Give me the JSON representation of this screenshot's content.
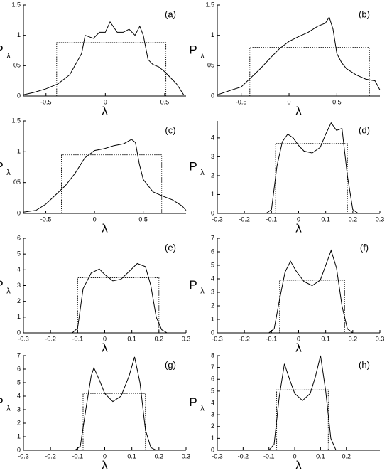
{
  "chart_data": [
    {
      "type": "line",
      "annotation": "(a)",
      "ylabel": "P",
      "ylabel_sub": "λ",
      "xlabel": "λ",
      "xlim": [
        -0.69,
        0.68
      ],
      "xticks": [
        -0.5,
        0,
        0.5
      ],
      "ylim": [
        0,
        1.5
      ],
      "yticks": [
        0,
        {
          "value": 0.5,
          "label": "05"
        },
        1,
        1.5
      ],
      "series": [
        {
          "color": "#000",
          "style": "solid",
          "x": [
            -0.69,
            -0.6,
            -0.5,
            -0.4,
            -0.3,
            -0.2,
            -0.17,
            -0.1,
            -0.05,
            0,
            0.04,
            0.1,
            0.15,
            0.2,
            0.25,
            0.29,
            0.32,
            0.36,
            0.4,
            0.45,
            0.5,
            0.55,
            0.6,
            0.66
          ],
          "values": [
            0.02,
            0.06,
            0.12,
            0.2,
            0.35,
            0.7,
            1.0,
            0.95,
            1.05,
            1.05,
            1.22,
            1.05,
            1.05,
            1.1,
            1.0,
            1.15,
            1.0,
            0.6,
            0.52,
            0.48,
            0.4,
            0.3,
            0.2,
            0.02
          ]
        },
        {
          "color": "#000",
          "style": "dotted",
          "x": [
            -0.41,
            -0.41,
            0.51,
            0.51
          ],
          "values": [
            0,
            0.88,
            0.88,
            0
          ]
        }
      ]
    },
    {
      "type": "line",
      "annotation": "(b)",
      "ylabel": "P",
      "ylabel_sub": "λ",
      "xlabel": "λ",
      "xlim": [
        -0.75,
        0.95
      ],
      "xticks": [
        -0.5,
        0,
        0.5
      ],
      "ylim": [
        0,
        1.5
      ],
      "yticks": [
        0,
        {
          "value": 0.5,
          "label": "05"
        },
        1,
        1.5
      ],
      "series": [
        {
          "color": "#000",
          "style": "solid",
          "x": [
            -0.75,
            -0.6,
            -0.5,
            -0.4,
            -0.3,
            -0.2,
            -0.1,
            0,
            0.1,
            0.2,
            0.3,
            0.38,
            0.42,
            0.46,
            0.5,
            0.55,
            0.6,
            0.7,
            0.8,
            0.9,
            0.95
          ],
          "values": [
            0.02,
            0.1,
            0.15,
            0.3,
            0.45,
            0.62,
            0.78,
            0.9,
            0.98,
            1.05,
            1.15,
            1.2,
            1.3,
            1.1,
            0.7,
            0.55,
            0.45,
            0.35,
            0.28,
            0.25,
            0.1
          ]
        },
        {
          "color": "#000",
          "style": "dotted",
          "x": [
            -0.41,
            -0.41,
            0.84,
            0.84
          ],
          "values": [
            0,
            0.8,
            0.8,
            0
          ]
        }
      ]
    },
    {
      "type": "line",
      "annotation": "(c)",
      "ylabel": "P",
      "ylabel_sub": "λ",
      "xlabel": "λ",
      "xlim": [
        -0.73,
        0.94
      ],
      "xticks": [
        -0.5,
        0,
        0.5
      ],
      "ylim": [
        0,
        1.5
      ],
      "yticks": [
        0,
        {
          "value": 0.5,
          "label": "05"
        },
        1,
        1.5
      ],
      "series": [
        {
          "color": "#000",
          "style": "solid",
          "x": [
            -0.73,
            -0.6,
            -0.5,
            -0.4,
            -0.3,
            -0.2,
            -0.1,
            0,
            0.1,
            0.2,
            0.3,
            0.38,
            0.42,
            0.46,
            0.5,
            0.6,
            0.7,
            0.8,
            0.9,
            0.94
          ],
          "values": [
            0.02,
            0.05,
            0.15,
            0.3,
            0.45,
            0.65,
            0.9,
            1.02,
            1.05,
            1.1,
            1.13,
            1.2,
            1.15,
            0.8,
            0.55,
            0.35,
            0.28,
            0.22,
            0.12,
            0.05
          ]
        },
        {
          "color": "#000",
          "style": "dotted",
          "x": [
            -0.34,
            -0.34,
            0.69,
            0.69
          ],
          "values": [
            0,
            0.95,
            0.95,
            0
          ]
        }
      ]
    },
    {
      "type": "line",
      "annotation": "(d)",
      "ylabel": "P",
      "ylabel_sub": "λ",
      "xlabel": "λ",
      "xlim": [
        -0.3,
        0.3
      ],
      "xticks": [
        -0.3,
        -0.2,
        -0.1,
        0,
        0.1,
        0.2,
        0.3
      ],
      "ylim": [
        0,
        4.9
      ],
      "yticks": [
        0,
        1,
        2,
        3,
        4
      ],
      "series": [
        {
          "color": "#000",
          "style": "solid",
          "x": [
            -0.3,
            -0.12,
            -0.1,
            -0.08,
            -0.06,
            -0.04,
            -0.02,
            0,
            0.02,
            0.05,
            0.08,
            0.1,
            0.12,
            0.14,
            0.16,
            0.18,
            0.2,
            0.22,
            0.3
          ],
          "values": [
            0,
            0,
            0.2,
            2.5,
            3.8,
            4.2,
            4.0,
            3.6,
            3.3,
            3.2,
            3.5,
            4.2,
            4.8,
            4.4,
            4.5,
            2.0,
            0.2,
            0,
            0
          ]
        },
        {
          "color": "#000",
          "style": "dotted",
          "x": [
            -0.085,
            -0.085,
            0.18,
            0.18
          ],
          "values": [
            0,
            3.7,
            3.7,
            0
          ]
        }
      ]
    },
    {
      "type": "line",
      "annotation": "(e)",
      "ylabel": "P",
      "ylabel_sub": "λ",
      "xlabel": "λ",
      "xlim": [
        -0.3,
        0.3
      ],
      "xticks": [
        -0.3,
        -0.2,
        -0.1,
        0,
        0.1,
        0.2,
        0.3
      ],
      "ylim": [
        0,
        6
      ],
      "yticks": [
        0,
        1,
        2,
        3,
        4,
        5,
        6
      ],
      "series": [
        {
          "color": "#000",
          "style": "solid",
          "x": [
            -0.3,
            -0.12,
            -0.1,
            -0.08,
            -0.05,
            -0.02,
            0,
            0.03,
            0.06,
            0.09,
            0.12,
            0.15,
            0.17,
            0.19,
            0.21,
            0.23,
            0.3
          ],
          "values": [
            0,
            0,
            0.3,
            2.8,
            3.8,
            4.05,
            3.7,
            3.3,
            3.4,
            3.9,
            4.4,
            4.2,
            3.0,
            1.0,
            0.2,
            0,
            0
          ]
        },
        {
          "color": "#000",
          "style": "dotted",
          "x": [
            -0.1,
            -0.1,
            0.2,
            0.2
          ],
          "values": [
            0,
            3.5,
            3.5,
            0
          ]
        }
      ]
    },
    {
      "type": "line",
      "annotation": "(f)",
      "ylabel": "P",
      "ylabel_sub": "λ",
      "xlabel": "λ",
      "xlim": [
        -0.3,
        0.3
      ],
      "xticks": [
        -0.3,
        -0.2,
        -0.1,
        0,
        0.1,
        0.2,
        0.3
      ],
      "ylim": [
        0,
        7
      ],
      "yticks": [
        0,
        1,
        2,
        3,
        4,
        5,
        6,
        7
      ],
      "series": [
        {
          "color": "#000",
          "style": "solid",
          "x": [
            -0.3,
            -0.11,
            -0.09,
            -0.07,
            -0.05,
            -0.03,
            -0.01,
            0.02,
            0.05,
            0.08,
            0.1,
            0.12,
            0.14,
            0.16,
            0.18,
            0.2,
            0.3
          ],
          "values": [
            0,
            0,
            0.3,
            2.5,
            4.5,
            5.3,
            4.6,
            3.8,
            3.5,
            3.9,
            5.0,
            6.1,
            4.8,
            2.0,
            0.3,
            0,
            0
          ]
        },
        {
          "color": "#000",
          "style": "dotted",
          "x": [
            -0.07,
            -0.07,
            0.17,
            0.17
          ],
          "values": [
            0,
            3.9,
            3.9,
            0
          ]
        }
      ]
    },
    {
      "type": "line",
      "annotation": "(g)",
      "ylabel": "P",
      "ylabel_sub": "λ",
      "xlabel": "λ",
      "xlim": [
        -0.3,
        0.3
      ],
      "xticks": [
        -0.3,
        -0.2,
        -0.1,
        0,
        0.1,
        0.2,
        0.3
      ],
      "ylim": [
        0,
        7
      ],
      "yticks": [
        0,
        1,
        2,
        3,
        4,
        5,
        6,
        7
      ],
      "series": [
        {
          "color": "#000",
          "style": "solid",
          "x": [
            -0.3,
            -0.11,
            -0.09,
            -0.07,
            -0.05,
            -0.04,
            -0.02,
            0,
            0.03,
            0.06,
            0.09,
            0.11,
            0.13,
            0.15,
            0.17,
            0.19,
            0.3
          ],
          "values": [
            0,
            0,
            0.3,
            3.0,
            5.5,
            6.1,
            5.2,
            4.2,
            3.6,
            4.0,
            5.5,
            6.9,
            5.0,
            1.5,
            0.2,
            0,
            0
          ]
        },
        {
          "color": "#000",
          "style": "dotted",
          "x": [
            -0.08,
            -0.08,
            0.15,
            0.15
          ],
          "values": [
            0,
            4.2,
            4.2,
            0
          ]
        }
      ]
    },
    {
      "type": "line",
      "annotation": "(h)",
      "ylabel": "P",
      "ylabel_sub": "λ",
      "xlabel": "λ",
      "xlim": [
        -0.3,
        0.33
      ],
      "xticks": [
        -0.3,
        -0.2,
        -0.1,
        0,
        0.1,
        0.2
      ],
      "ylim": [
        0,
        8
      ],
      "yticks": [
        0,
        1,
        2,
        3,
        4,
        5,
        6,
        7,
        8
      ],
      "series": [
        {
          "color": "#000",
          "style": "solid",
          "x": [
            -0.3,
            -0.1,
            -0.08,
            -0.06,
            -0.04,
            -0.02,
            0,
            0.03,
            0.06,
            0.08,
            0.1,
            0.12,
            0.14,
            0.16,
            0.2,
            0.25
          ],
          "values": [
            0,
            0,
            0.5,
            4.5,
            7.3,
            6.0,
            4.8,
            4.2,
            4.8,
            6.2,
            8.0,
            5.0,
            1.0,
            0,
            0,
            0
          ]
        },
        {
          "color": "#000",
          "style": "dotted",
          "x": [
            -0.07,
            -0.07,
            0.13,
            0.13
          ],
          "values": [
            0,
            5.1,
            5.1,
            0
          ]
        }
      ]
    }
  ]
}
